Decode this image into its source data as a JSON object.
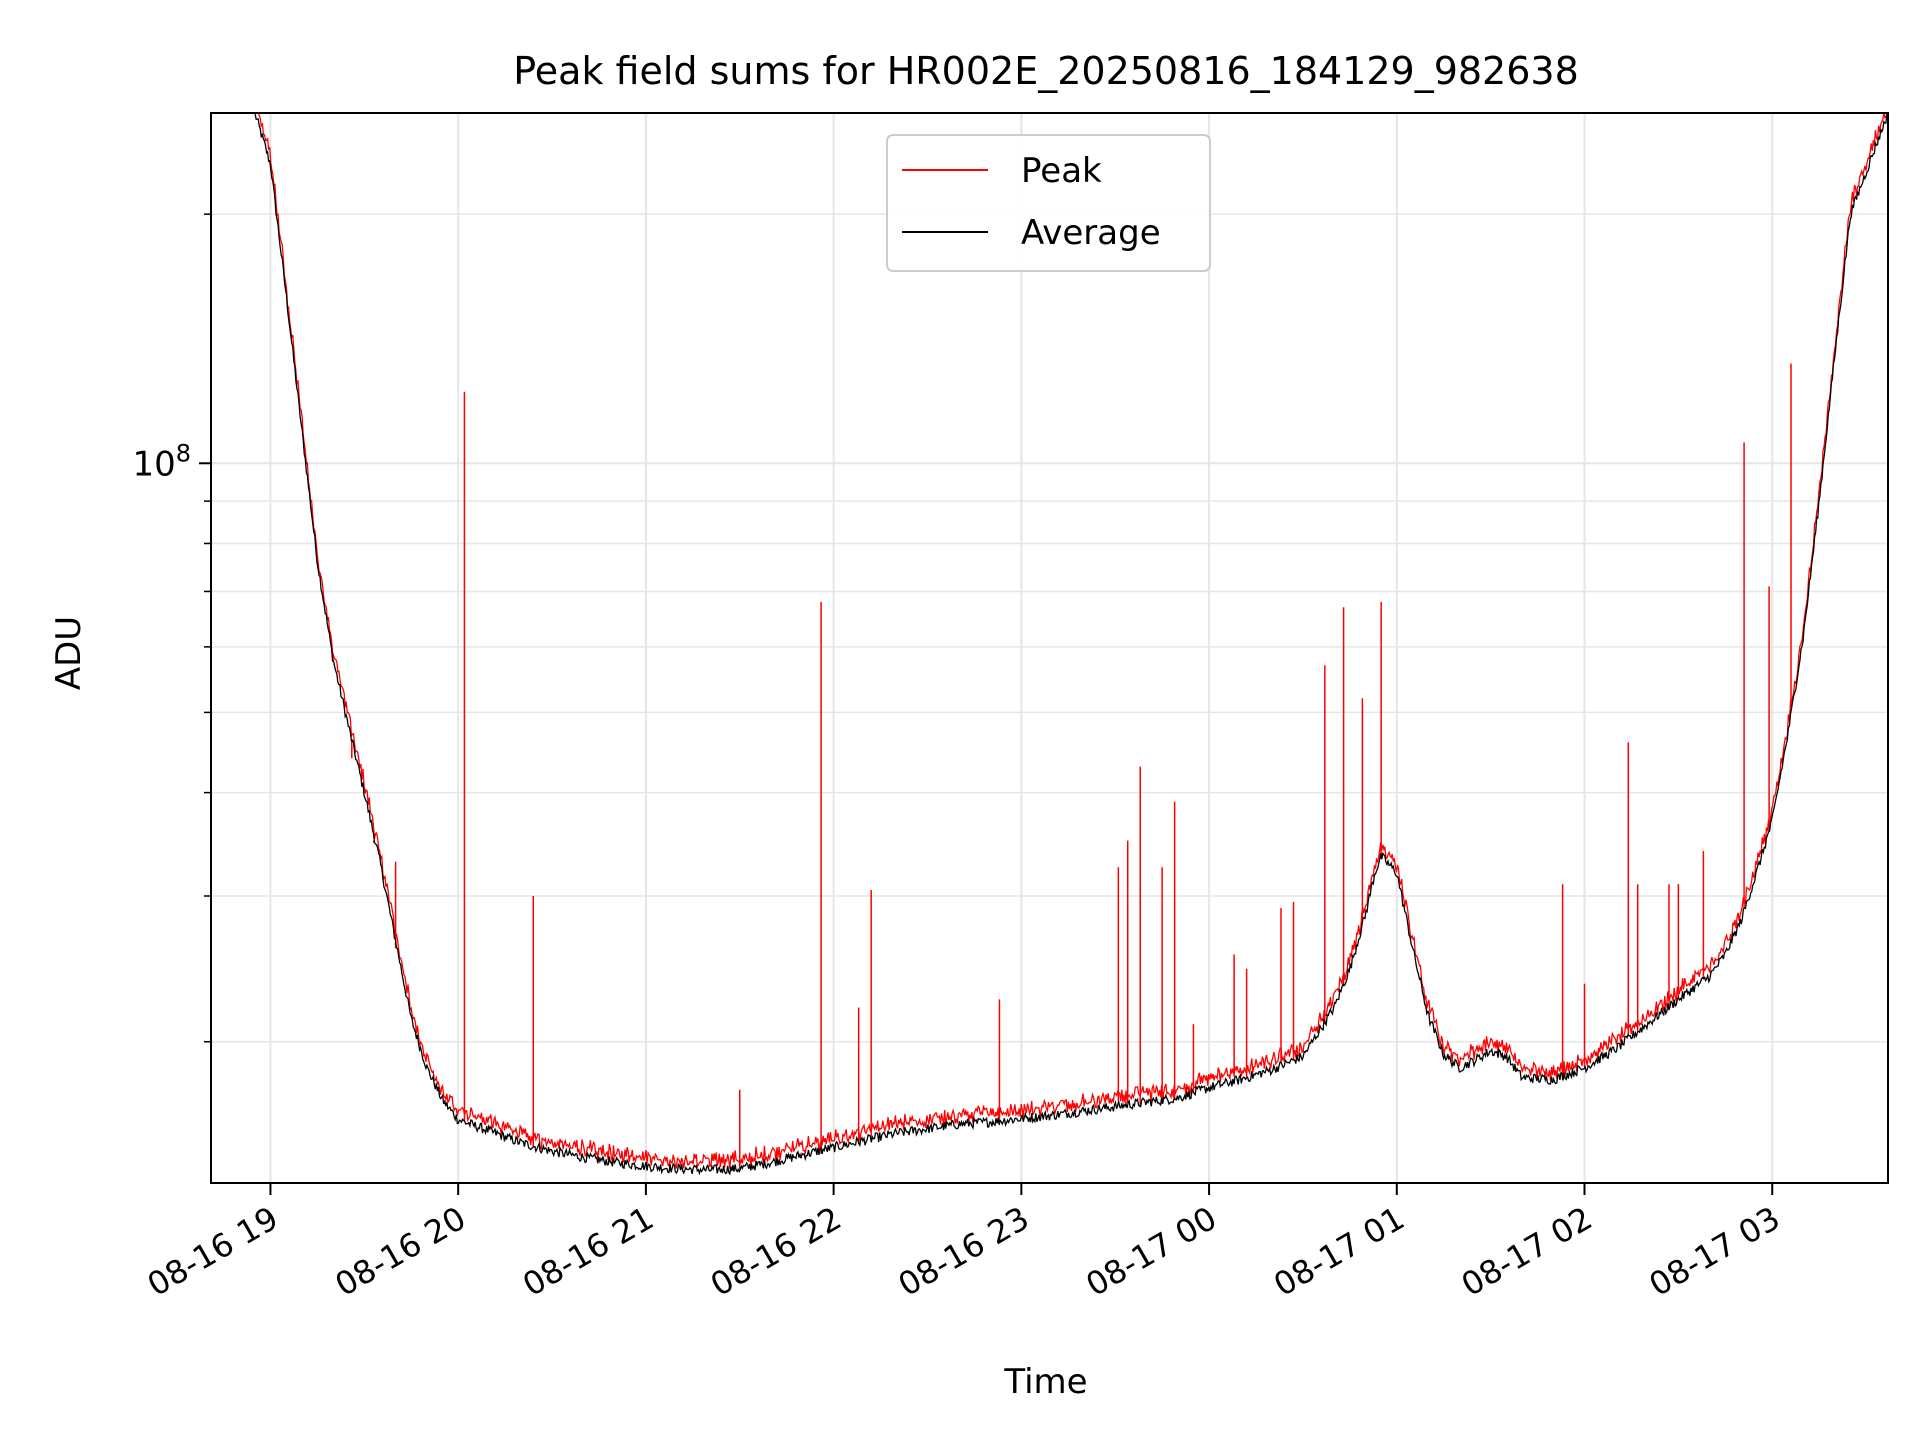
{
  "chart_data": {
    "type": "line",
    "title": "Peak field sums for HR002E_20250816_184129_982638",
    "xlabel": "Time",
    "ylabel": "ADU",
    "y_scale": "log",
    "ylim": [
      13500000,
      265000000
    ],
    "xlim": [
      "2025-08-16 18:41",
      "2025-08-17 03:37"
    ],
    "x_ticks": [
      "08-16 19",
      "08-16 20",
      "08-16 21",
      "08-16 22",
      "08-16 23",
      "08-17 00",
      "08-17 01",
      "08-17 02",
      "08-17 03"
    ],
    "y_tick_label": {
      "base": "10",
      "exponent": "8",
      "value": 100000000
    },
    "grid": true,
    "legend": {
      "position": "upper center",
      "entries": [
        "Peak",
        "Average"
      ]
    },
    "colors": {
      "Peak": "#ff0000",
      "Average": "#000000",
      "grid": "#e6e6e6"
    },
    "series": [
      {
        "name": "Average",
        "x": [
          "2025-08-16 18:41",
          "2025-08-16 18:55",
          "2025-08-16 19:00",
          "2025-08-16 19:05",
          "2025-08-16 19:10",
          "2025-08-16 19:15",
          "2025-08-16 19:20",
          "2025-08-16 19:25",
          "2025-08-16 19:30",
          "2025-08-16 19:35",
          "2025-08-16 19:40",
          "2025-08-16 19:45",
          "2025-08-16 19:50",
          "2025-08-16 19:55",
          "2025-08-16 20:00",
          "2025-08-16 20:10",
          "2025-08-16 20:20",
          "2025-08-16 20:30",
          "2025-08-16 20:40",
          "2025-08-16 20:50",
          "2025-08-16 21:00",
          "2025-08-16 21:10",
          "2025-08-16 21:20",
          "2025-08-16 21:30",
          "2025-08-16 21:40",
          "2025-08-16 21:50",
          "2025-08-16 22:00",
          "2025-08-16 22:10",
          "2025-08-16 22:20",
          "2025-08-16 22:30",
          "2025-08-16 22:40",
          "2025-08-16 22:50",
          "2025-08-16 23:00",
          "2025-08-16 23:10",
          "2025-08-16 23:20",
          "2025-08-16 23:30",
          "2025-08-16 23:40",
          "2025-08-16 23:50",
          "2025-08-17 00:00",
          "2025-08-17 00:10",
          "2025-08-17 00:20",
          "2025-08-17 00:30",
          "2025-08-17 00:40",
          "2025-08-17 00:45",
          "2025-08-17 00:50",
          "2025-08-17 00:53",
          "2025-08-17 00:55",
          "2025-08-17 01:00",
          "2025-08-17 01:05",
          "2025-08-17 01:10",
          "2025-08-17 01:15",
          "2025-08-17 01:20",
          "2025-08-17 01:25",
          "2025-08-17 01:30",
          "2025-08-17 01:35",
          "2025-08-17 01:40",
          "2025-08-17 01:50",
          "2025-08-17 02:00",
          "2025-08-17 02:10",
          "2025-08-17 02:20",
          "2025-08-17 02:30",
          "2025-08-17 02:40",
          "2025-08-17 02:45",
          "2025-08-17 02:50",
          "2025-08-17 02:55",
          "2025-08-17 03:00",
          "2025-08-17 03:05",
          "2025-08-17 03:10",
          "2025-08-17 03:15",
          "2025-08-17 03:20",
          "2025-08-17 03:25",
          "2025-08-17 03:37"
        ],
        "y": [
          265000000,
          265000000,
          230000000,
          160000000,
          110000000,
          76000000,
          58000000,
          48000000,
          40000000,
          33000000,
          26500000,
          21300000,
          18600000,
          17000000,
          16100000,
          15600000,
          15100000,
          14750000,
          14500000,
          14300000,
          14150000,
          14050000,
          14000000,
          14050000,
          14300000,
          14600000,
          14900000,
          15200000,
          15500000,
          15700000,
          15900000,
          16000000,
          16150000,
          16300000,
          16500000,
          16700000,
          16900000,
          17100000,
          17600000,
          18000000,
          18500000,
          19200000,
          22000000,
          24500000,
          28500000,
          32000000,
          33500000,
          32000000,
          26000000,
          21500000,
          19300000,
          18600000,
          19000000,
          19500000,
          19200000,
          18100000,
          18000000,
          18600000,
          19600000,
          21000000,
          22500000,
          24000000,
          25500000,
          28000000,
          32000000,
          37000000,
          47000000,
          62000000,
          90000000,
          135000000,
          200000000,
          265000000
        ]
      },
      {
        "name": "Peak",
        "spikes": [
          {
            "x": "2025-08-16 19:20",
            "y": 59000000
          },
          {
            "x": "2025-08-16 19:26",
            "y": 44000000
          },
          {
            "x": "2025-08-16 19:33",
            "y": 35000000
          },
          {
            "x": "2025-08-16 19:40",
            "y": 33000000
          },
          {
            "x": "2025-08-16 20:02",
            "y": 122000000
          },
          {
            "x": "2025-08-16 20:24",
            "y": 30000000
          },
          {
            "x": "2025-08-16 21:30",
            "y": 17500000
          },
          {
            "x": "2025-08-16 21:56",
            "y": 68000000
          },
          {
            "x": "2025-08-16 22:08",
            "y": 22000000
          },
          {
            "x": "2025-08-16 22:12",
            "y": 30500000
          },
          {
            "x": "2025-08-16 22:53",
            "y": 22500000
          },
          {
            "x": "2025-08-16 23:31",
            "y": 32500000
          },
          {
            "x": "2025-08-16 23:34",
            "y": 35000000
          },
          {
            "x": "2025-08-16 23:38",
            "y": 43000000
          },
          {
            "x": "2025-08-16 23:45",
            "y": 32500000
          },
          {
            "x": "2025-08-16 23:49",
            "y": 39000000
          },
          {
            "x": "2025-08-16 23:55",
            "y": 21000000
          },
          {
            "x": "2025-08-17 00:08",
            "y": 25500000
          },
          {
            "x": "2025-08-17 00:12",
            "y": 24500000
          },
          {
            "x": "2025-08-17 00:23",
            "y": 29000000
          },
          {
            "x": "2025-08-17 00:27",
            "y": 29500000
          },
          {
            "x": "2025-08-17 00:37",
            "y": 57000000
          },
          {
            "x": "2025-08-17 00:43",
            "y": 67000000
          },
          {
            "x": "2025-08-17 00:49",
            "y": 52000000
          },
          {
            "x": "2025-08-17 00:55",
            "y": 68000000
          },
          {
            "x": "2025-08-17 01:53",
            "y": 31000000
          },
          {
            "x": "2025-08-17 02:00",
            "y": 23500000
          },
          {
            "x": "2025-08-17 02:14",
            "y": 46000000
          },
          {
            "x": "2025-08-17 02:17",
            "y": 31000000
          },
          {
            "x": "2025-08-17 02:27",
            "y": 31000000
          },
          {
            "x": "2025-08-17 02:30",
            "y": 31000000
          },
          {
            "x": "2025-08-17 02:38",
            "y": 34000000
          },
          {
            "x": "2025-08-17 02:51",
            "y": 106000000
          },
          {
            "x": "2025-08-17 02:59",
            "y": 71000000
          },
          {
            "x": "2025-08-17 03:06",
            "y": 132000000
          }
        ]
      }
    ]
  }
}
